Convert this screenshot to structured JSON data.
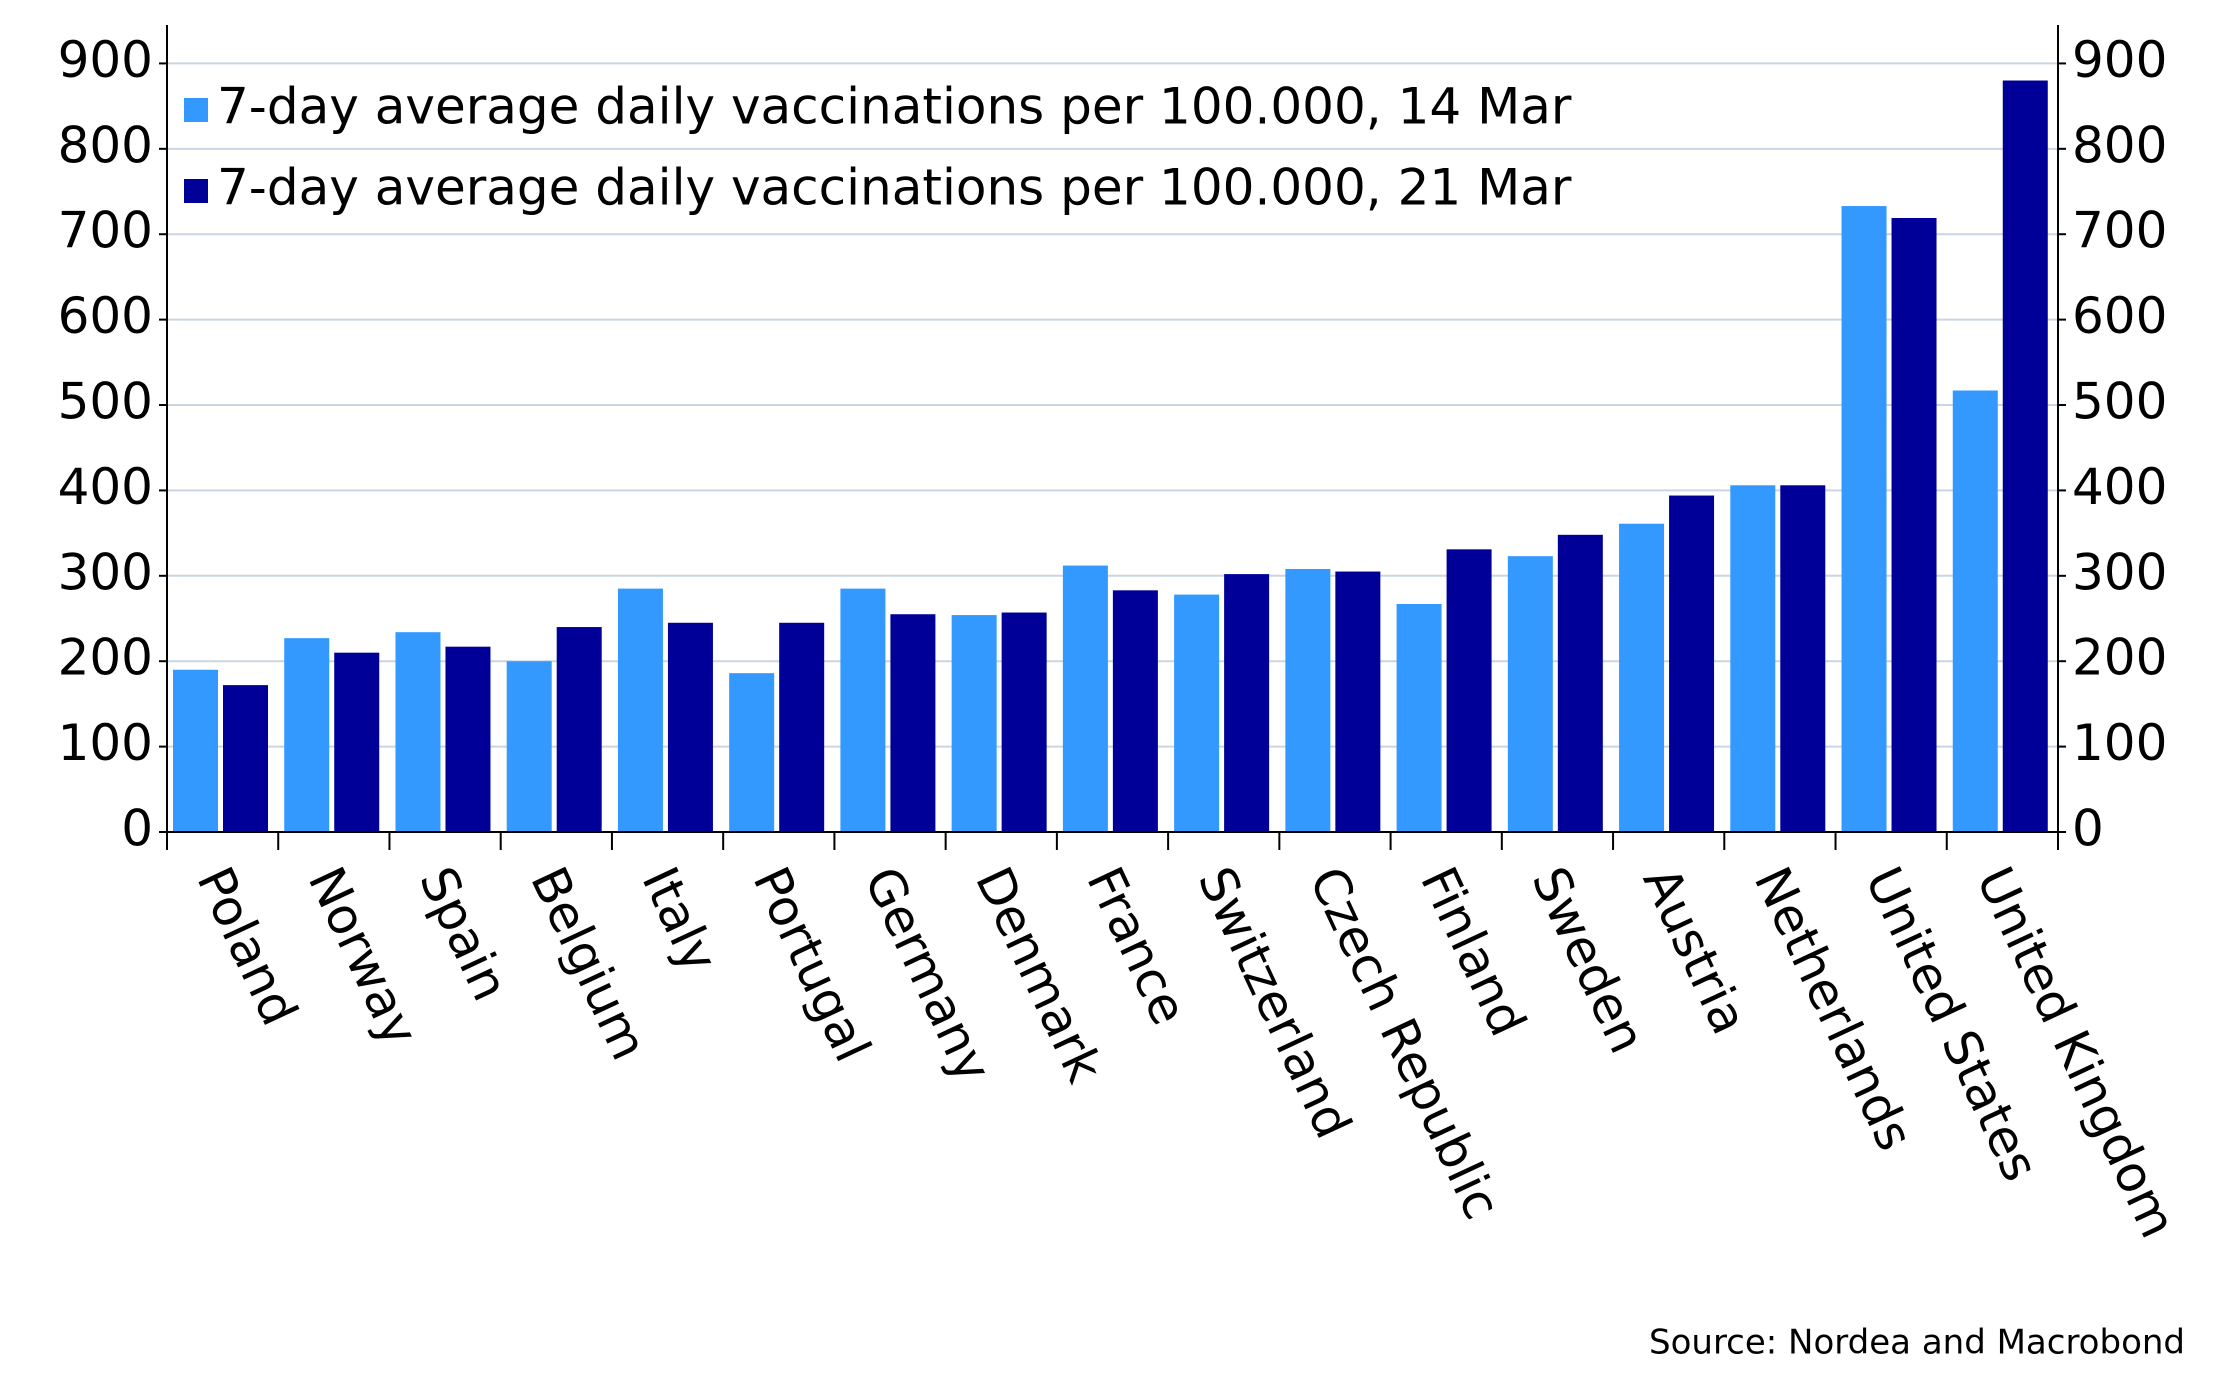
{
  "chart_data": {
    "type": "bar",
    "categories": [
      "Poland",
      "Norway",
      "Spain",
      "Belgium",
      "Italy",
      "Portugal",
      "Germany",
      "Denmark",
      "France",
      "Switzerland",
      "Czech Republic",
      "Finland",
      "Sweden",
      "Austria",
      "Netherlands",
      "United States",
      "United Kingdom"
    ],
    "series": [
      {
        "name": "7-day average daily vaccinations per 100.000, 14 Mar",
        "color": "#3399ff",
        "values": [
          190,
          227,
          234,
          200,
          285,
          186,
          285,
          254,
          312,
          278,
          308,
          267,
          323,
          361,
          406,
          733,
          517
        ]
      },
      {
        "name": "7-day average daily vaccinations per 100.000, 21 Mar",
        "color": "#000099",
        "values": [
          172,
          210,
          217,
          240,
          245,
          245,
          255,
          257,
          283,
          302,
          305,
          331,
          348,
          394,
          406,
          719,
          880
        ]
      }
    ],
    "ylim": [
      0,
      945
    ],
    "yticks": [
      0,
      100,
      200,
      300,
      400,
      500,
      600,
      700,
      800,
      900
    ],
    "y2lim": [
      0,
      945
    ],
    "y2ticks": [
      0,
      100,
      200,
      300,
      400,
      500,
      600,
      700,
      800,
      900
    ],
    "grid": true,
    "legend": "top-left",
    "source": "Source: Nordea and Macrobond"
  }
}
